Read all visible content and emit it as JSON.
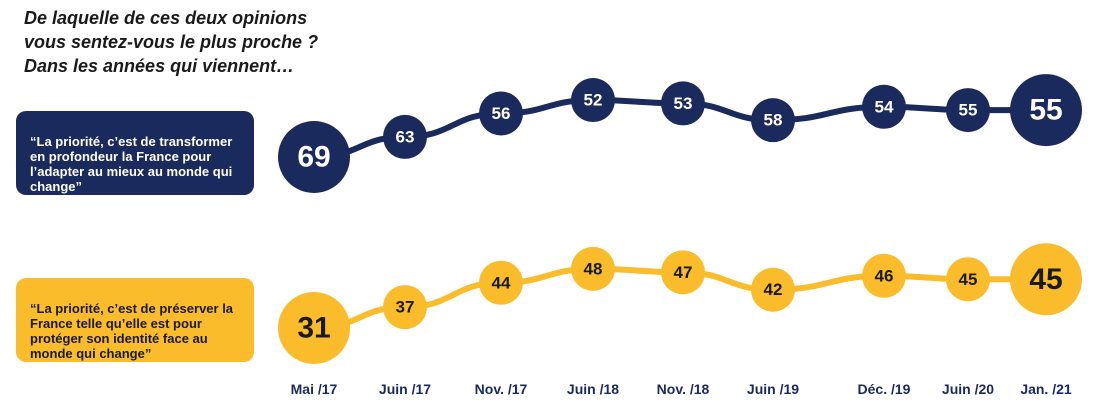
{
  "question": {
    "lines": [
      "De laquelle de ces deux opinions",
      "vous sentez-vous le plus proche ?",
      "Dans les années qui viennent…"
    ]
  },
  "chart_data": {
    "type": "line",
    "categories": [
      "Mai /17",
      "Juin /17",
      "Nov. /17",
      "Juin /18",
      "Nov. /18",
      "Juin /19",
      "Déc. /19",
      "Juin /20",
      "Jan. /21"
    ],
    "series": [
      {
        "name": "“La priorité, c’est de transformer en profondeur la France pour l’adapter au mieux au monde qui change”",
        "color": "#1b2a5c",
        "values": [
          69,
          63,
          56,
          52,
          53,
          58,
          54,
          55,
          55
        ]
      },
      {
        "name": "“La priorité, c’est de préserver la France  telle qu’elle est pour protéger son identité face au monde qui change”",
        "color": "#fbbc2c",
        "values": [
          31,
          37,
          44,
          48,
          47,
          42,
          46,
          45,
          45
        ]
      }
    ],
    "tick_color": "#1b2a5c"
  }
}
